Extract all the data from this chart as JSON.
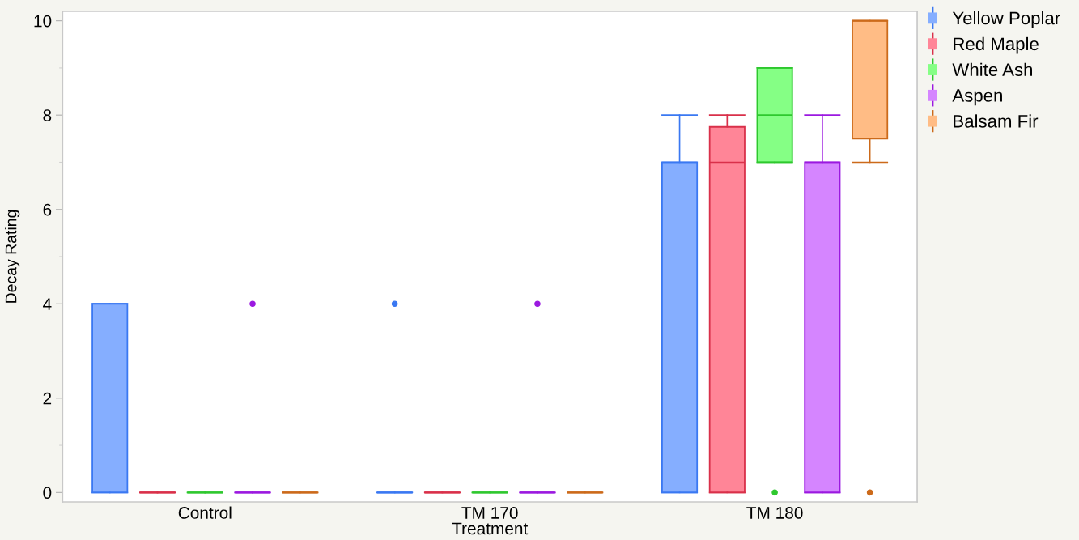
{
  "chart_data": {
    "type": "box",
    "xlabel": "Treatment",
    "ylabel": "Decay Rating",
    "categories": [
      "Control",
      "TM 170",
      "TM 180"
    ],
    "series": [
      {
        "name": "Yellow Poplar",
        "color": "#3a78f2",
        "boxes": [
          {
            "low": 0,
            "q1": 0,
            "median": 4,
            "q3": 4,
            "high": 4
          },
          {
            "low": 0,
            "q1": 0,
            "median": 0,
            "q3": 0,
            "high": 0,
            "outliers": [
              4
            ]
          },
          {
            "low": 0,
            "q1": 0,
            "median": 7,
            "q3": 7,
            "high": 8
          }
        ]
      },
      {
        "name": "Red Maple",
        "color": "#d9304a",
        "boxes": [
          {
            "low": 0,
            "q1": 0,
            "median": 0,
            "q3": 0,
            "high": 0
          },
          {
            "low": 0,
            "q1": 0,
            "median": 0,
            "q3": 0,
            "high": 0
          },
          {
            "low": 0,
            "q1": 0,
            "median": 7,
            "q3": 7.75,
            "high": 8
          }
        ]
      },
      {
        "name": "White Ash",
        "color": "#2ec82e",
        "boxes": [
          {
            "low": 0,
            "q1": 0,
            "median": 0,
            "q3": 0,
            "high": 0
          },
          {
            "low": 0,
            "q1": 0,
            "median": 0,
            "q3": 0,
            "high": 0
          },
          {
            "low": 7,
            "q1": 7,
            "median": 8,
            "q3": 9,
            "high": 9,
            "outliers": [
              0
            ]
          }
        ]
      },
      {
        "name": "Aspen",
        "color": "#9b19e0",
        "boxes": [
          {
            "low": 0,
            "q1": 0,
            "median": 0,
            "q3": 0,
            "high": 0,
            "outliers": [
              4
            ]
          },
          {
            "low": 0,
            "q1": 0,
            "median": 0,
            "q3": 0,
            "high": 0,
            "outliers": [
              4
            ]
          },
          {
            "low": 0,
            "q1": 0,
            "median": 7,
            "q3": 7,
            "high": 8
          }
        ]
      },
      {
        "name": "Balsam Fir",
        "color": "#cc6a1a",
        "boxes": [
          {
            "low": 0,
            "q1": 0,
            "median": 0,
            "q3": 0,
            "high": 0
          },
          {
            "low": 0,
            "q1": 0,
            "median": 0,
            "q3": 0,
            "high": 0
          },
          {
            "low": 7,
            "q1": 7.5,
            "median": 10,
            "q3": 10,
            "high": 10,
            "outliers": [
              0
            ]
          }
        ]
      }
    ],
    "ylim": [
      -0.2,
      10.2
    ],
    "yticks": [
      0,
      {
        "value": 1,
        "label": null
      },
      2,
      {
        "value": 3,
        "label": null
      },
      4,
      {
        "value": 5,
        "label": null
      },
      6,
      {
        "value": 7,
        "label": null
      },
      8,
      {
        "value": 9,
        "label": null
      },
      10
    ],
    "legend": "top right"
  }
}
